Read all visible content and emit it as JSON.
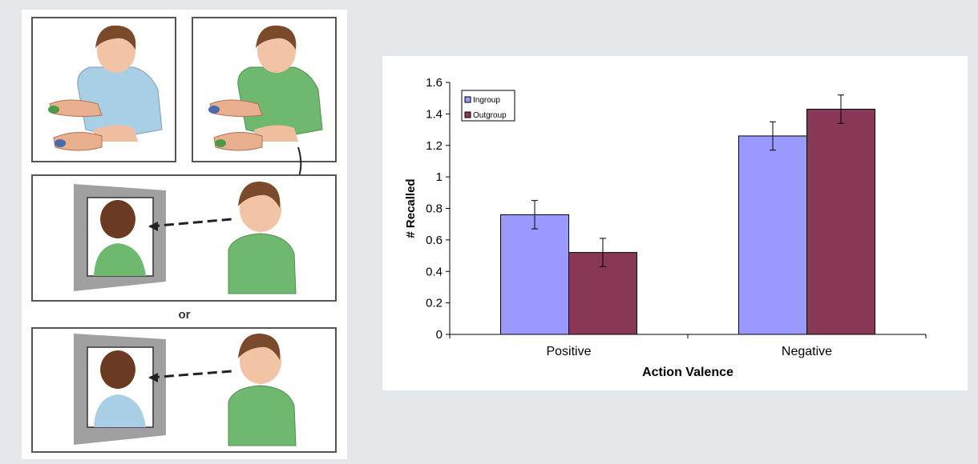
{
  "illustration": {
    "or_label": "or"
  },
  "chart_data": {
    "type": "bar",
    "categories": [
      "Positive",
      "Negative"
    ],
    "series": [
      {
        "name": "Ingroup",
        "color": "#9999ff",
        "values": [
          0.76,
          1.26
        ],
        "errors": [
          0.09,
          0.09
        ]
      },
      {
        "name": "Outgroup",
        "color": "#883757",
        "values": [
          0.52,
          1.43
        ],
        "errors": [
          0.09,
          0.09
        ]
      }
    ],
    "title": "",
    "xlabel": "Action Valence",
    "ylabel": "# Recalled",
    "ylim": [
      0,
      1.6
    ],
    "yticks": [
      "0",
      "0.2",
      "0.4",
      "0.6",
      "0.8",
      "1",
      "1.2",
      "1.4",
      "1.6"
    ],
    "grid": false,
    "legend_position": "top-left"
  }
}
